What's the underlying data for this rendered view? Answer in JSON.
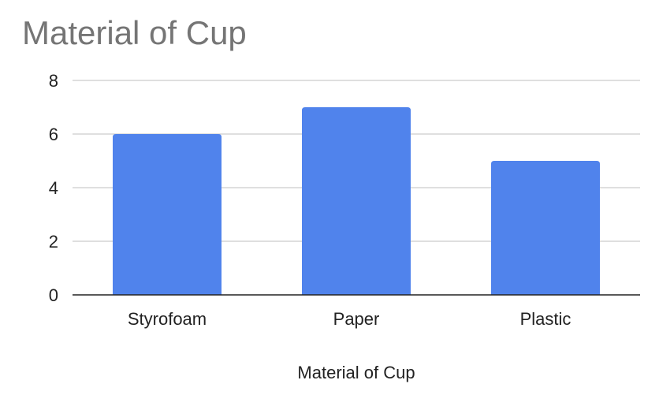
{
  "chart_data": {
    "type": "bar",
    "title": "Material of Cup",
    "categories": [
      "Styrofoam",
      "Paper",
      "Plastic"
    ],
    "values": [
      6,
      7,
      5
    ],
    "xlabel": "Material of Cup",
    "ylabel": "",
    "ylim": [
      0,
      8
    ],
    "yticks": [
      0,
      2,
      4,
      6,
      8
    ],
    "grid": true,
    "legend": "none",
    "bar_color": "#5083ec",
    "grid_color": "#cccccc",
    "axis_color": "#222222"
  }
}
